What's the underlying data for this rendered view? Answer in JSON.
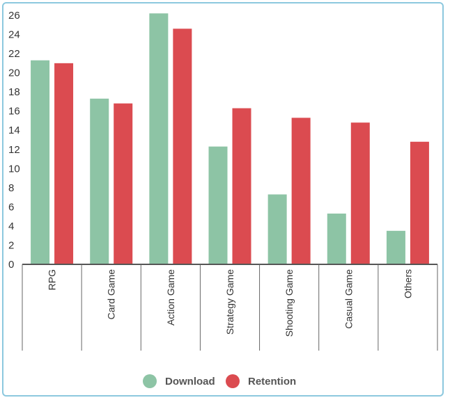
{
  "chart_data": {
    "type": "bar",
    "categories": [
      "RPG",
      "Card Game",
      "Action Game",
      "Strategy Game",
      "Shooting Game",
      "Casual Game",
      "Others"
    ],
    "series": [
      {
        "name": "Download",
        "values": [
          21.3,
          17.3,
          26.2,
          12.3,
          7.3,
          5.3,
          3.5
        ],
        "color": "#8dc4a5"
      },
      {
        "name": "Retention",
        "values": [
          21.0,
          16.8,
          24.6,
          16.3,
          15.3,
          14.8,
          12.8
        ],
        "color": "#db4b50"
      }
    ],
    "yticks": [
      "0",
      "2",
      "4",
      "6",
      "8",
      "10",
      "12",
      "14",
      "16",
      "18",
      "20",
      "22",
      "24",
      "26"
    ],
    "ylim": [
      0,
      26
    ],
    "title": "",
    "xlabel": "",
    "ylabel": "",
    "legend_position": "bottom-center",
    "grid": false
  }
}
